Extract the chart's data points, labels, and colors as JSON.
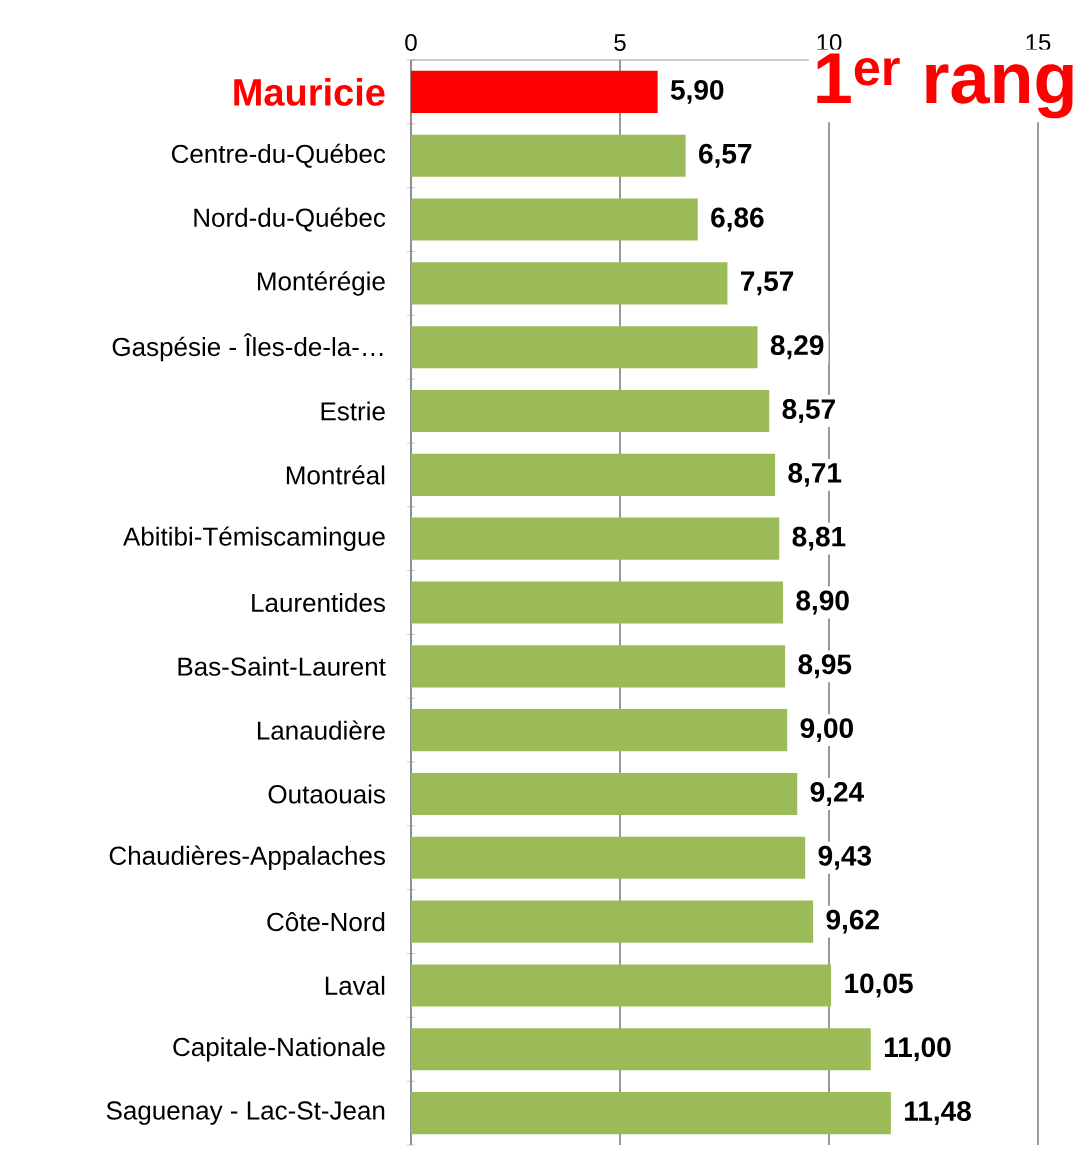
{
  "chart_data": {
    "type": "bar",
    "orientation": "horizontal",
    "categories": [
      "Mauricie",
      "Centre-du-Québec",
      "Nord-du-Québec",
      "Montérégie",
      "Gaspésie - Îles-de-la-…",
      "Estrie",
      "Montréal",
      "Abitibi-Témiscamingue",
      "Laurentides",
      "Bas-Saint-Laurent",
      "Lanaudière",
      "Outaouais",
      "Chaudières-Appalaches",
      "Côte-Nord",
      "Laval",
      "Capitale-Nationale",
      "Saguenay - Lac-St-Jean"
    ],
    "values": [
      5.9,
      6.57,
      6.86,
      7.57,
      8.29,
      8.57,
      8.71,
      8.81,
      8.9,
      8.95,
      9.0,
      9.24,
      9.43,
      9.62,
      10.05,
      11.0,
      11.48
    ],
    "value_labels": [
      "5,90",
      "6,57",
      "6,86",
      "7,57",
      "8,29",
      "8,57",
      "8,71",
      "8,81",
      "8,90",
      "8,95",
      "9,00",
      "9,24",
      "9,43",
      "9,62",
      "10,05",
      "11,00",
      "11,48"
    ],
    "colors": [
      "#ff0000",
      "#9bbb59",
      "#9bbb59",
      "#9bbb59",
      "#9bbb59",
      "#9bbb59",
      "#9bbb59",
      "#9bbb59",
      "#9bbb59",
      "#9bbb59",
      "#9bbb59",
      "#9bbb59",
      "#9bbb59",
      "#9bbb59",
      "#9bbb59",
      "#9bbb59",
      "#9bbb59"
    ],
    "xlim": [
      0,
      15
    ],
    "xticks": [
      0,
      5,
      10,
      15
    ],
    "grid": "x",
    "annotations": [
      "1$^{er}$ rang"
    ]
  }
}
